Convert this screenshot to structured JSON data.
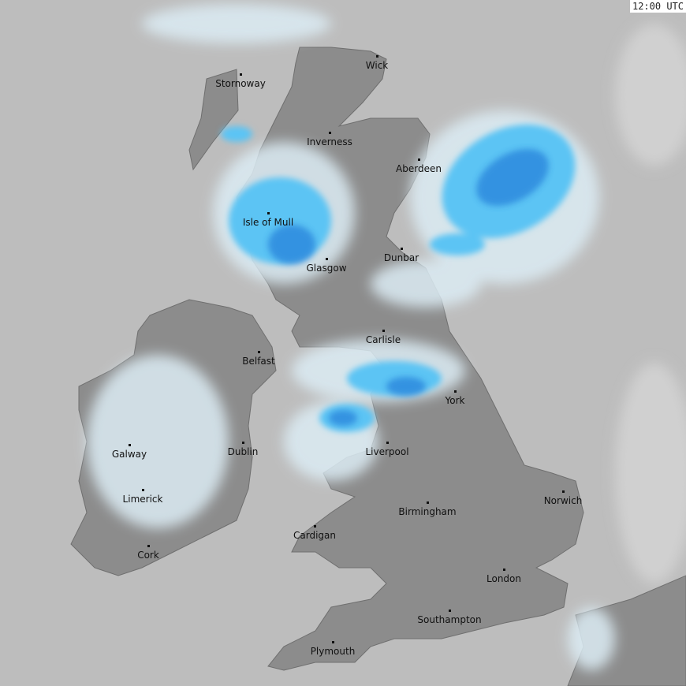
{
  "timestamp": "12:00 UTC",
  "colors": {
    "sea": "#bdbdbd",
    "land": "#8c8c8c",
    "rain_light": "#dcecf4",
    "rain_medium": "#5cc4f4",
    "rain_heavy": "#2a86dc"
  },
  "cities": [
    {
      "name": "Wick"
    },
    {
      "name": "Stornoway"
    },
    {
      "name": "Inverness"
    },
    {
      "name": "Aberdeen"
    },
    {
      "name": "Isle of Mull"
    },
    {
      "name": "Dunbar"
    },
    {
      "name": "Glasgow"
    },
    {
      "name": "Carlisle"
    },
    {
      "name": "Belfast"
    },
    {
      "name": "York"
    },
    {
      "name": "Galway"
    },
    {
      "name": "Dublin"
    },
    {
      "name": "Liverpool"
    },
    {
      "name": "Limerick"
    },
    {
      "name": "Norwich"
    },
    {
      "name": "Birmingham"
    },
    {
      "name": "Cardigan"
    },
    {
      "name": "Cork"
    },
    {
      "name": "London"
    },
    {
      "name": "Southampton"
    },
    {
      "name": "Plymouth"
    }
  ]
}
